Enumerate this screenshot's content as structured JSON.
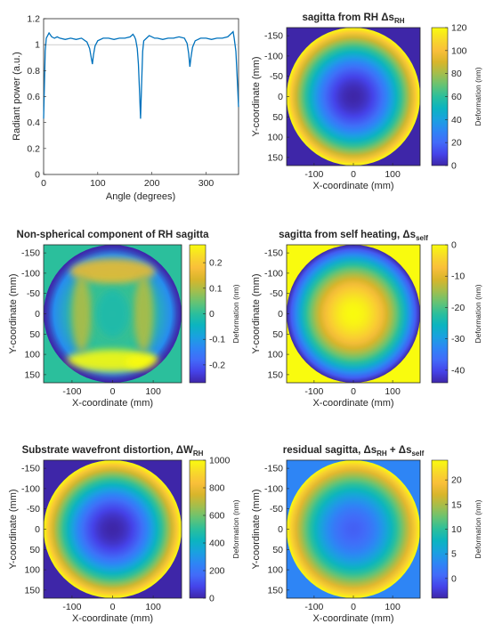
{
  "colormap": [
    "#3e26a8",
    "#4543e9",
    "#426bf9",
    "#2e85f5",
    "#1aa1e0",
    "#0bb4c0",
    "#2bbf9c",
    "#66c374",
    "#a4be4c",
    "#d8b52b",
    "#f9bf3a",
    "#f8da2a",
    "#f9fb0e"
  ],
  "line_color": "#0072bd",
  "chart_data": [
    {
      "id": "radiant",
      "type": "line",
      "title": "",
      "xlabel": "Angle (degrees)",
      "ylabel": "Radiant power (a.u.)",
      "xlim": [
        0,
        360
      ],
      "ylim": [
        0,
        1.2
      ],
      "xticks": [
        "0",
        "100",
        "200",
        "300"
      ],
      "yticks": [
        "0",
        "0.2",
        "0.4",
        "0.6",
        "0.8",
        "1",
        "1.2"
      ],
      "x": [
        0,
        3,
        5,
        10,
        15,
        20,
        25,
        30,
        40,
        50,
        60,
        70,
        80,
        85,
        88,
        90,
        92,
        95,
        100,
        110,
        120,
        130,
        140,
        150,
        160,
        165,
        168,
        170,
        173,
        175,
        177,
        179,
        181,
        183,
        185,
        190,
        195,
        200,
        205,
        210,
        220,
        230,
        240,
        250,
        260,
        265,
        268,
        270,
        272,
        275,
        280,
        290,
        300,
        310,
        320,
        330,
        340,
        345,
        350,
        352,
        355,
        358,
        360
      ],
      "y": [
        0.43,
        0.95,
        1.05,
        1.09,
        1.06,
        1.05,
        1.06,
        1.05,
        1.04,
        1.05,
        1.04,
        1.05,
        1.02,
        0.97,
        0.9,
        0.85,
        0.92,
        0.99,
        1.03,
        1.05,
        1.05,
        1.04,
        1.05,
        1.05,
        1.06,
        1.08,
        1.06,
        1.04,
        0.97,
        0.85,
        0.65,
        0.43,
        0.7,
        0.95,
        1.03,
        1.05,
        1.07,
        1.06,
        1.05,
        1.05,
        1.04,
        1.05,
        1.05,
        1.06,
        1.05,
        1.01,
        0.93,
        0.83,
        0.9,
        0.98,
        1.03,
        1.05,
        1.05,
        1.04,
        1.05,
        1.05,
        1.06,
        1.08,
        1.1,
        1.05,
        0.95,
        0.7,
        0.52
      ]
    },
    {
      "id": "sag_rh",
      "type": "heatmap",
      "pattern": "radial",
      "title": "sagitta from RH Δs",
      "title_sub": "RH",
      "title_tail": "",
      "xlabel": "X-coordinate (mm)",
      "ylabel": "Y-coordinate (mm)",
      "xlim": [
        -170,
        170
      ],
      "ylim": [
        -170,
        170
      ],
      "xticks": [
        "-100",
        "0",
        "100"
      ],
      "yticks": [
        "-150",
        "-100",
        "-50",
        "0",
        "50",
        "100",
        "150"
      ],
      "clim": [
        0,
        120
      ],
      "cticks": [
        "0",
        "20",
        "40",
        "60",
        "80",
        "100",
        "120"
      ],
      "cblabel": "Deformation (nm)",
      "outside_value": 0,
      "aperture_radius": 170,
      "center_value": 0,
      "edge_value": 120
    },
    {
      "id": "nonsph",
      "type": "heatmap",
      "pattern": "nonspherical",
      "title": "Non-spherical component of RH sagitta",
      "title_sub": "",
      "title_tail": "",
      "xlabel": "X-coordinate (mm)",
      "ylabel": "Y-coordinate (mm)",
      "xlim": [
        -170,
        170
      ],
      "ylim": [
        -170,
        170
      ],
      "xticks": [
        "-100",
        "0",
        "100"
      ],
      "yticks": [
        "-150",
        "-100",
        "-50",
        "0",
        "50",
        "100",
        "150"
      ],
      "clim": [
        -0.27,
        0.27
      ],
      "cticks": [
        "-0.2",
        "-0.1",
        "0",
        "0.1",
        "0.2"
      ],
      "cblabel": "Deformation (nm)",
      "outside_value": 0,
      "aperture_radius": 170,
      "center_value": 0,
      "edge_value": -0.27
    },
    {
      "id": "sag_self",
      "type": "heatmap",
      "pattern": "radial",
      "title": "sagitta from self heating, Δs",
      "title_sub": "self",
      "title_tail": "",
      "xlabel": "X-coordinate (mm)",
      "ylabel": "Y-coordinate (mm)",
      "xlim": [
        -170,
        170
      ],
      "ylim": [
        -170,
        170
      ],
      "xticks": [
        "-100",
        "0",
        "100"
      ],
      "yticks": [
        "-150",
        "-100",
        "-50",
        "0",
        "50",
        "100",
        "150"
      ],
      "clim": [
        -44,
        0
      ],
      "cticks": [
        "-40",
        "-30",
        "-20",
        "-10",
        "0"
      ],
      "cblabel": "Deformation (nm)",
      "outside_value": 0,
      "aperture_radius": 170,
      "center_value": 0,
      "edge_value": -44
    },
    {
      "id": "wavefront",
      "type": "heatmap",
      "pattern": "radial",
      "title": "Substrate wavefront distortion, ΔW",
      "title_sub": "RH",
      "title_tail": "",
      "xlabel": "X-coordinate (mm)",
      "ylabel": "Y-coordinate (mm)",
      "xlim": [
        -170,
        170
      ],
      "ylim": [
        -170,
        170
      ],
      "xticks": [
        "-100",
        "0",
        "100"
      ],
      "yticks": [
        "-150",
        "-100",
        "-50",
        "0",
        "50",
        "100",
        "150"
      ],
      "clim": [
        0,
        1000
      ],
      "cticks": [
        "0",
        "200",
        "400",
        "600",
        "800",
        "1000"
      ],
      "cblabel": "Deformation (nm)",
      "outside_value": 0,
      "aperture_radius": 170,
      "center_value": 0,
      "edge_value": 1000
    },
    {
      "id": "residual",
      "type": "heatmap",
      "pattern": "radial",
      "title": "residual sagitta, Δs",
      "title_sub": "RH",
      "title_tail": " + Δs",
      "title_sub2": "self",
      "xlabel": "X-coordinate (mm)",
      "ylabel": "Y-coordinate (mm)",
      "xlim": [
        -170,
        170
      ],
      "ylim": [
        -170,
        170
      ],
      "xticks": [
        "-100",
        "0",
        "100"
      ],
      "yticks": [
        "-150",
        "-100",
        "-50",
        "0",
        "50",
        "100",
        "150"
      ],
      "clim": [
        -4,
        24
      ],
      "cticks": [
        "0",
        "5",
        "10",
        "15",
        "20"
      ],
      "cblabel": "Deformation (nm)",
      "outside_value": 3,
      "aperture_radius": 170,
      "center_value": 0,
      "edge_value": 24
    }
  ]
}
